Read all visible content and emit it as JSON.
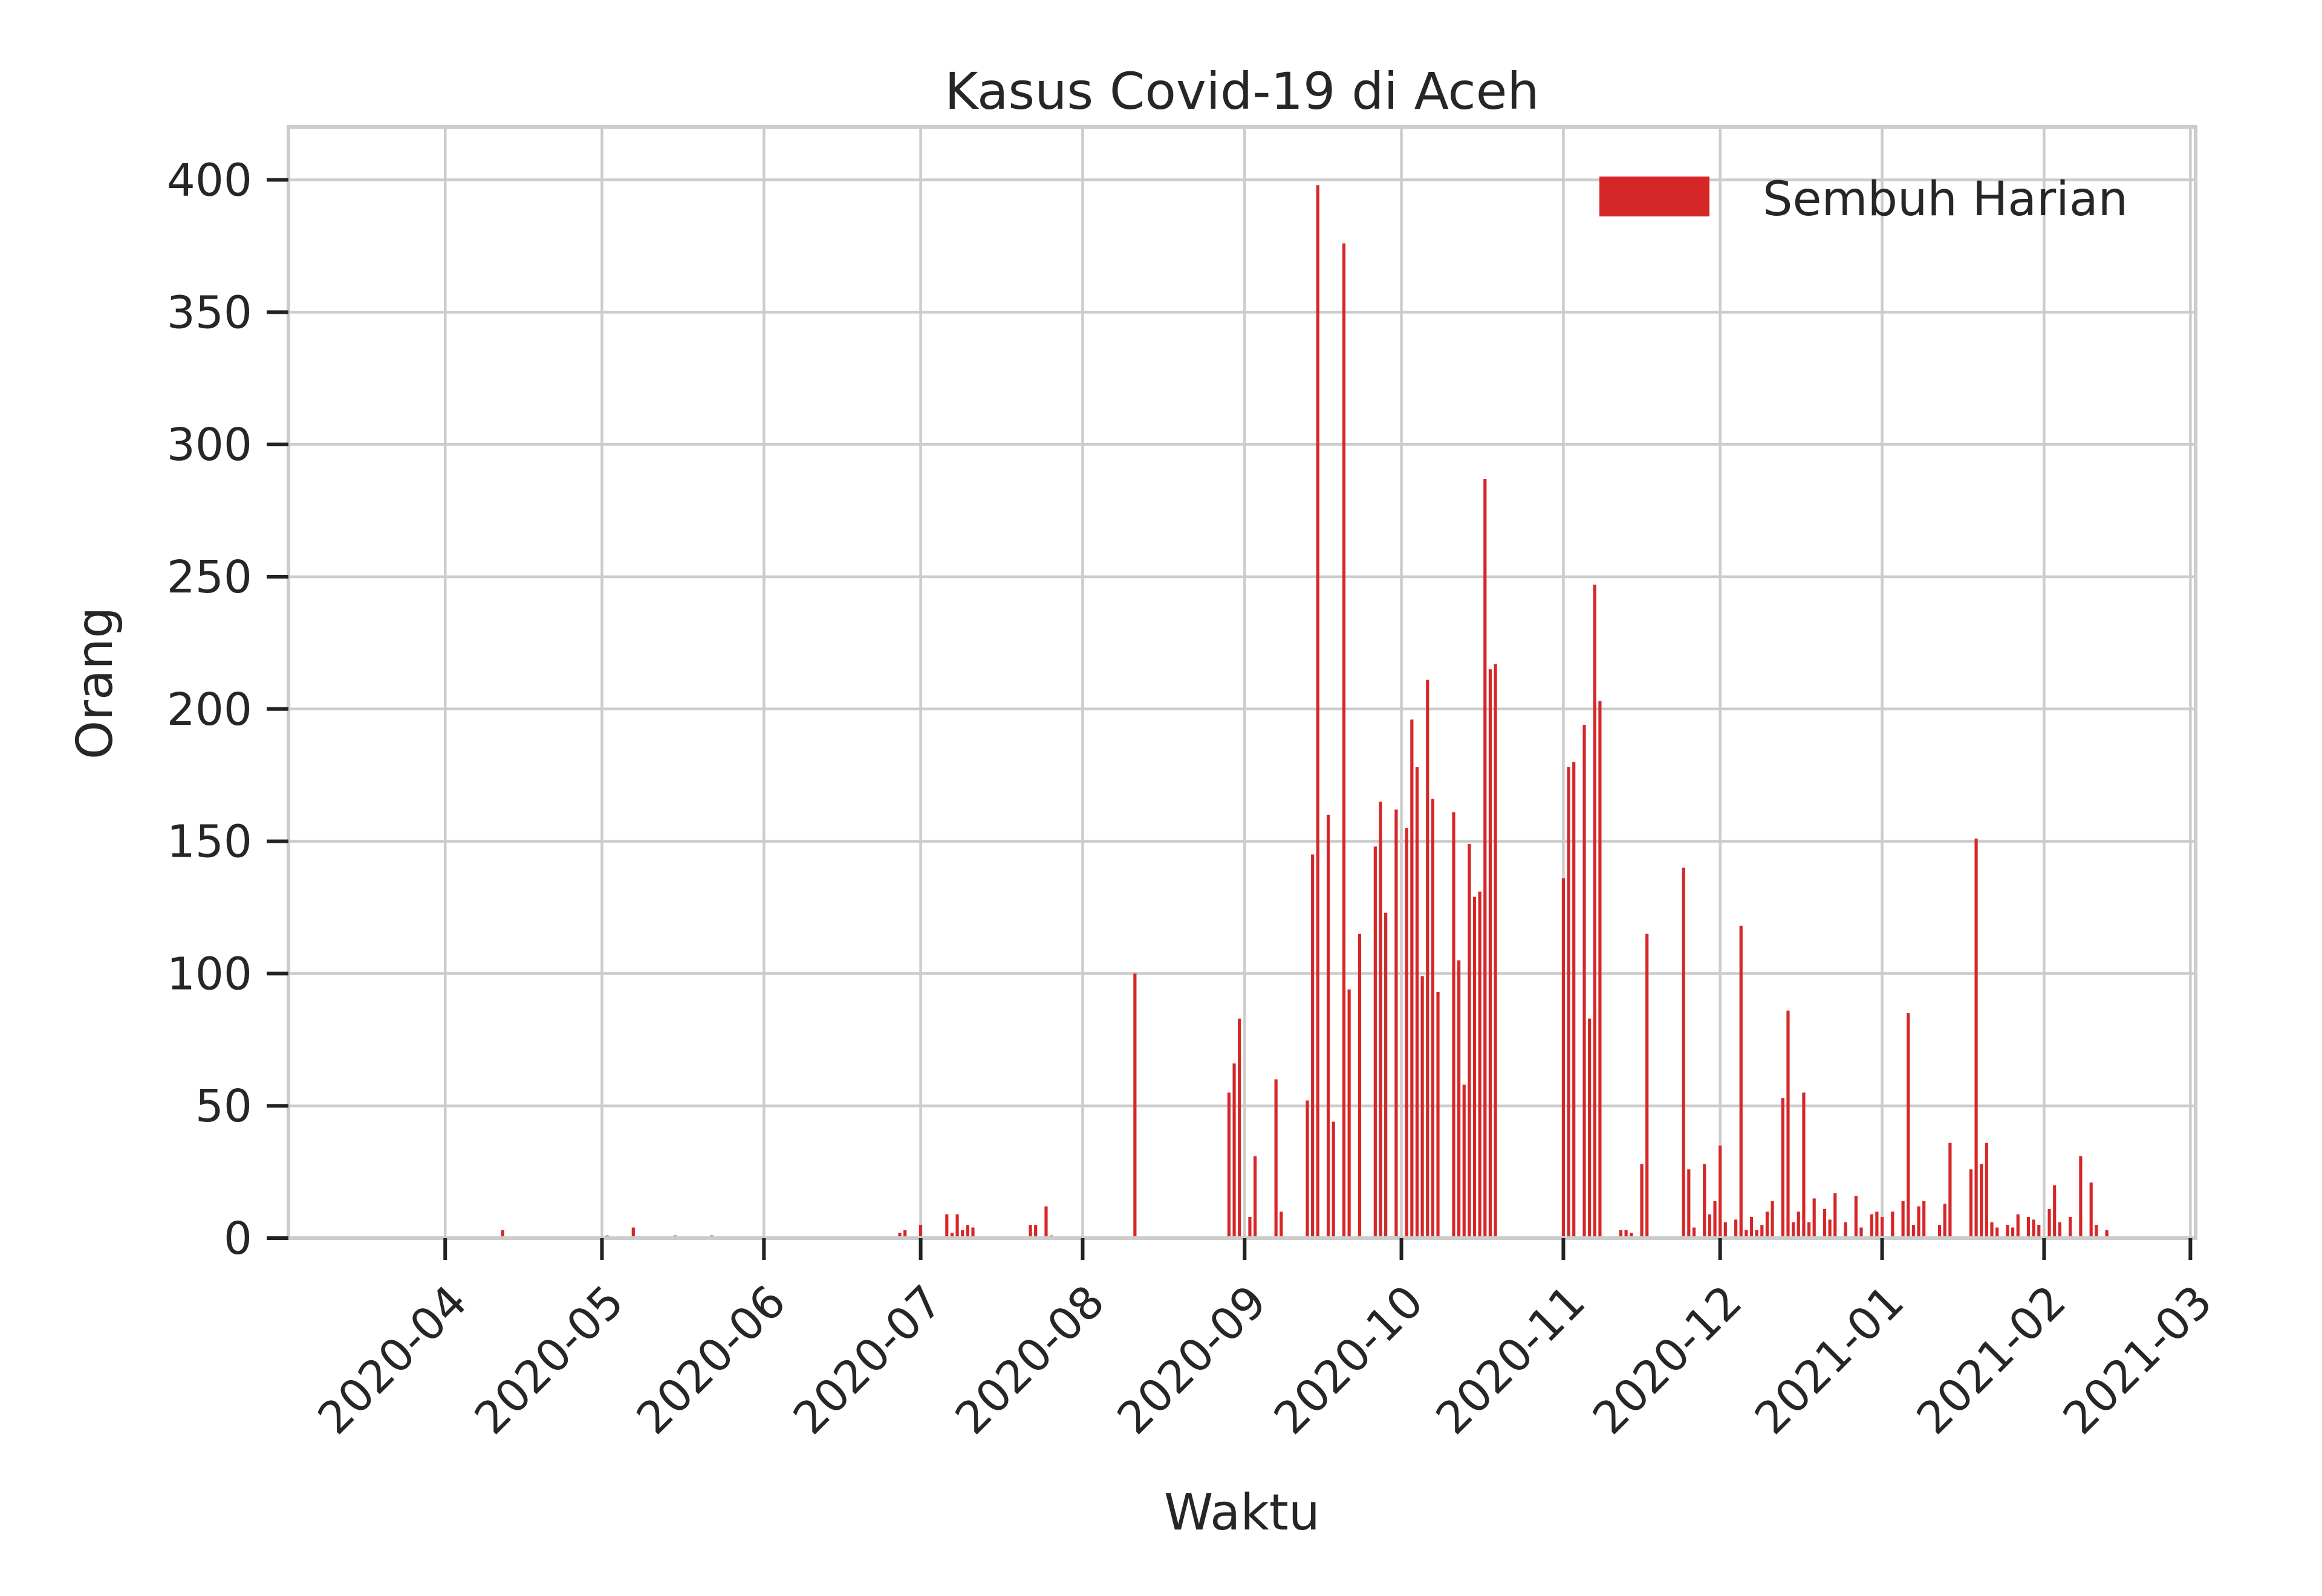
{
  "chart_data": {
    "type": "bar",
    "title": "Kasus Covid-19 di Aceh",
    "xlabel": "Waktu",
    "ylabel": "Orang",
    "x_axis": "date",
    "xlim": [
      "2020-03-02",
      "2021-03-02"
    ],
    "ylim": [
      0,
      420
    ],
    "yticks": [
      0,
      50,
      100,
      150,
      200,
      250,
      300,
      350,
      400
    ],
    "xticks": [
      "2020-04",
      "2020-05",
      "2020-06",
      "2020-07",
      "2020-08",
      "2020-09",
      "2020-10",
      "2020-11",
      "2020-12",
      "2021-01",
      "2021-02",
      "2021-03"
    ],
    "grid": true,
    "legend_position": "top-right",
    "colors": {
      "bar": "#d62728",
      "grid": "#cccccc"
    },
    "series": [
      {
        "name": "Sembuh Harian",
        "points": [
          [
            "2020-04-12",
            3
          ],
          [
            "2020-05-02",
            1
          ],
          [
            "2020-05-07",
            4
          ],
          [
            "2020-05-15",
            1
          ],
          [
            "2020-05-22",
            1
          ],
          [
            "2020-06-27",
            2
          ],
          [
            "2020-06-28",
            3
          ],
          [
            "2020-07-01",
            5
          ],
          [
            "2020-07-06",
            9
          ],
          [
            "2020-07-07",
            2
          ],
          [
            "2020-07-08",
            9
          ],
          [
            "2020-07-09",
            3
          ],
          [
            "2020-07-10",
            5
          ],
          [
            "2020-07-11",
            4
          ],
          [
            "2020-07-22",
            5
          ],
          [
            "2020-07-23",
            5
          ],
          [
            "2020-07-25",
            12
          ],
          [
            "2020-07-26",
            1
          ],
          [
            "2020-08-11",
            100
          ],
          [
            "2020-08-29",
            55
          ],
          [
            "2020-08-30",
            66
          ],
          [
            "2020-08-31",
            83
          ],
          [
            "2020-09-02",
            8
          ],
          [
            "2020-09-03",
            31
          ],
          [
            "2020-09-07",
            60
          ],
          [
            "2020-09-08",
            10
          ],
          [
            "2020-09-13",
            52
          ],
          [
            "2020-09-14",
            145
          ],
          [
            "2020-09-15",
            398
          ],
          [
            "2020-09-17",
            160
          ],
          [
            "2020-09-18",
            44
          ],
          [
            "2020-09-20",
            376
          ],
          [
            "2020-09-21",
            94
          ],
          [
            "2020-09-23",
            115
          ],
          [
            "2020-09-26",
            148
          ],
          [
            "2020-09-27",
            165
          ],
          [
            "2020-09-28",
            123
          ],
          [
            "2020-09-30",
            162
          ],
          [
            "2020-10-02",
            155
          ],
          [
            "2020-10-03",
            196
          ],
          [
            "2020-10-04",
            178
          ],
          [
            "2020-10-05",
            99
          ],
          [
            "2020-10-06",
            211
          ],
          [
            "2020-10-07",
            166
          ],
          [
            "2020-10-08",
            93
          ],
          [
            "2020-10-11",
            161
          ],
          [
            "2020-10-12",
            105
          ],
          [
            "2020-10-13",
            58
          ],
          [
            "2020-10-14",
            149
          ],
          [
            "2020-10-15",
            129
          ],
          [
            "2020-10-16",
            131
          ],
          [
            "2020-10-17",
            287
          ],
          [
            "2020-10-18",
            215
          ],
          [
            "2020-10-19",
            217
          ],
          [
            "2020-11-01",
            136
          ],
          [
            "2020-11-02",
            178
          ],
          [
            "2020-11-03",
            180
          ],
          [
            "2020-11-05",
            194
          ],
          [
            "2020-11-06",
            83
          ],
          [
            "2020-11-07",
            247
          ],
          [
            "2020-11-08",
            203
          ],
          [
            "2020-11-12",
            3
          ],
          [
            "2020-11-13",
            3
          ],
          [
            "2020-11-14",
            2
          ],
          [
            "2020-11-16",
            28
          ],
          [
            "2020-11-17",
            115
          ],
          [
            "2020-11-24",
            140
          ],
          [
            "2020-11-25",
            26
          ],
          [
            "2020-11-26",
            4
          ],
          [
            "2020-11-28",
            28
          ],
          [
            "2020-11-29",
            9
          ],
          [
            "2020-11-30",
            14
          ],
          [
            "2020-12-01",
            35
          ],
          [
            "2020-12-02",
            6
          ],
          [
            "2020-12-04",
            7
          ],
          [
            "2020-12-05",
            118
          ],
          [
            "2020-12-06",
            3
          ],
          [
            "2020-12-07",
            8
          ],
          [
            "2020-12-08",
            3
          ],
          [
            "2020-12-09",
            5
          ],
          [
            "2020-12-10",
            10
          ],
          [
            "2020-12-11",
            14
          ],
          [
            "2020-12-13",
            53
          ],
          [
            "2020-12-14",
            86
          ],
          [
            "2020-12-15",
            6
          ],
          [
            "2020-12-16",
            10
          ],
          [
            "2020-12-17",
            55
          ],
          [
            "2020-12-18",
            6
          ],
          [
            "2020-12-19",
            15
          ],
          [
            "2020-12-21",
            11
          ],
          [
            "2020-12-22",
            7
          ],
          [
            "2020-12-23",
            17
          ],
          [
            "2020-12-25",
            6
          ],
          [
            "2020-12-27",
            16
          ],
          [
            "2020-12-28",
            4
          ],
          [
            "2020-12-30",
            9
          ],
          [
            "2020-12-31",
            10
          ],
          [
            "2021-01-01",
            8
          ],
          [
            "2021-01-03",
            10
          ],
          [
            "2021-01-05",
            14
          ],
          [
            "2021-01-06",
            85
          ],
          [
            "2021-01-07",
            5
          ],
          [
            "2021-01-08",
            12
          ],
          [
            "2021-01-09",
            14
          ],
          [
            "2021-01-12",
            5
          ],
          [
            "2021-01-13",
            13
          ],
          [
            "2021-01-14",
            36
          ],
          [
            "2021-01-18",
            26
          ],
          [
            "2021-01-19",
            151
          ],
          [
            "2021-01-20",
            28
          ],
          [
            "2021-01-21",
            36
          ],
          [
            "2021-01-22",
            6
          ],
          [
            "2021-01-23",
            4
          ],
          [
            "2021-01-25",
            5
          ],
          [
            "2021-01-26",
            4
          ],
          [
            "2021-01-27",
            9
          ],
          [
            "2021-01-29",
            8
          ],
          [
            "2021-01-30",
            7
          ],
          [
            "2021-01-31",
            5
          ],
          [
            "2021-02-02",
            11
          ],
          [
            "2021-02-03",
            20
          ],
          [
            "2021-02-04",
            6
          ],
          [
            "2021-02-06",
            8
          ],
          [
            "2021-02-08",
            31
          ],
          [
            "2021-02-10",
            21
          ],
          [
            "2021-02-11",
            5
          ],
          [
            "2021-02-13",
            3
          ]
        ]
      }
    ]
  }
}
